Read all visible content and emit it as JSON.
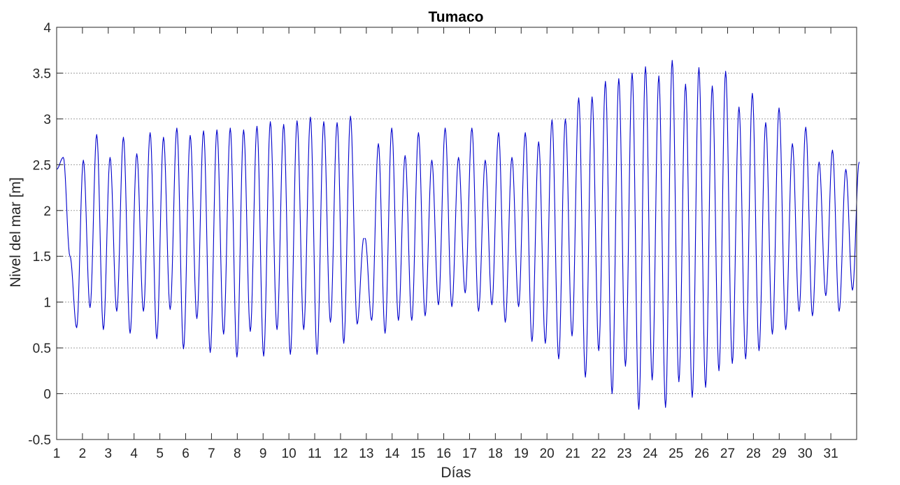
{
  "chart_data": {
    "type": "line",
    "title": "Tumaco",
    "xlabel": "Días",
    "ylabel": "Nivel del mar [m]",
    "xlim": [
      1,
      32
    ],
    "ylim": [
      -0.5,
      4
    ],
    "xticks": [
      1,
      2,
      3,
      4,
      5,
      6,
      7,
      8,
      9,
      10,
      11,
      12,
      13,
      14,
      15,
      16,
      17,
      18,
      19,
      20,
      21,
      22,
      23,
      24,
      25,
      26,
      27,
      28,
      29,
      30,
      31
    ],
    "yticks": [
      -0.5,
      0,
      0.5,
      1,
      1.5,
      2,
      2.5,
      3,
      3.5,
      4
    ],
    "ytick_labels": [
      "-0.5",
      "0",
      "0.5",
      "1",
      "1.5",
      "2",
      "2.5",
      "3",
      "3.5",
      "4"
    ],
    "grid": "y-dotted",
    "line_color": "#0000cc",
    "series": [
      {
        "segments": [
          [
            1.0,
            2.45,
            2.58,
            1.5,
            0.72,
            2.55,
            0.94,
            2.83,
            0.7,
            2.58,
            0.9,
            2.8,
            0.66,
            2.62,
            0.9,
            2.85,
            0.6,
            2.8,
            0.92,
            2.9,
            0.49,
            2.82,
            0.82,
            2.87,
            0.45,
            2.88,
            0.65,
            2.9,
            0.4,
            2.88,
            0.68,
            2.92,
            0.41,
            2.97,
            0.7,
            2.94,
            0.43,
            2.98,
            0.7,
            3.02,
            0.43,
            2.97,
            0.78,
            2.96,
            0.55,
            3.03,
            0.76,
            1.7
          ],
          [
            12.95,
            1.7,
            0.8,
            2.73,
            0.66,
            2.9,
            0.8,
            2.6,
            0.8,
            2.85,
            0.85,
            2.55,
            0.97,
            2.9,
            0.95,
            2.58,
            1.1,
            2.9,
            0.9,
            2.55,
            0.97,
            2.85,
            0.78,
            2.58,
            0.95,
            2.85,
            0.57,
            2.75,
            0.55,
            2.99,
            0.38,
            3.0,
            0.63,
            3.23,
            0.18,
            3.24,
            0.47,
            3.41,
            0.0,
            3.44,
            0.3,
            3.5,
            -0.17,
            3.57,
            0.15,
            3.47,
            -0.15,
            3.64,
            0.13,
            3.38,
            -0.04,
            3.56,
            0.07,
            3.36,
            0.25,
            3.52,
            0.33,
            3.13,
            0.38,
            3.28,
            0.47,
            2.96,
            0.65,
            3.12,
            0.7,
            2.73,
            0.9,
            2.91,
            0.85,
            2.53,
            1.07,
            2.66,
            0.9,
            2.45,
            1.13,
            2.53
          ]
        ]
      }
    ]
  }
}
